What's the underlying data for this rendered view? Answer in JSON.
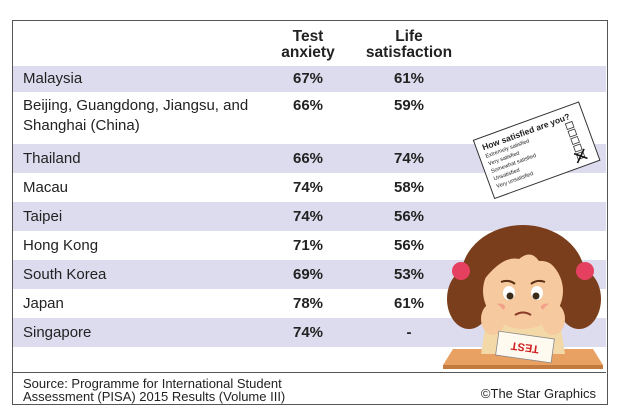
{
  "headers": {
    "col1_line1": "Test",
    "col1_line2": "anxiety",
    "col2_line1": "Life",
    "col2_line2": "satisfaction"
  },
  "rows": [
    {
      "country_line1": "Malaysia",
      "country_line2": "",
      "anxiety": "67%",
      "satisfaction": "61%",
      "shaded": true
    },
    {
      "country_line1": "Beijing, Guangdong, Jiangsu, and",
      "country_line2": "Shanghai (China)",
      "anxiety": "66%",
      "satisfaction": "59%",
      "shaded": false
    },
    {
      "country_line1": "Thailand",
      "country_line2": "",
      "anxiety": "66%",
      "satisfaction": "74%",
      "shaded": true
    },
    {
      "country_line1": "Macau",
      "country_line2": "",
      "anxiety": "74%",
      "satisfaction": "58%",
      "shaded": false
    },
    {
      "country_line1": "Taipei",
      "country_line2": "",
      "anxiety": "74%",
      "satisfaction": "56%",
      "shaded": true
    },
    {
      "country_line1": "Hong Kong",
      "country_line2": "",
      "anxiety": "71%",
      "satisfaction": "56%",
      "shaded": false
    },
    {
      "country_line1": "South Korea",
      "country_line2": "",
      "anxiety": "69%",
      "satisfaction": "53%",
      "shaded": true
    },
    {
      "country_line1": "Japan",
      "country_line2": "",
      "anxiety": "78%",
      "satisfaction": "61%",
      "shaded": false
    },
    {
      "country_line1": "Singapore",
      "country_line2": "",
      "anxiety": "74%",
      "satisfaction": "-",
      "shaded": true
    }
  ],
  "footer": {
    "source_line1": "Source: Programme for International Student",
    "source_line2": "Assessment (PISA) 2015 Results (Volume III)",
    "credit": "©The Star Graphics"
  },
  "survey_card": {
    "title": "How satisfied are you?",
    "options": [
      "Extremely satisfied",
      "Very satisfied",
      "Somewhat satisfied",
      "Unsatisfied",
      "Very unsatisfied"
    ]
  },
  "test_paper_label": "TEST",
  "colors": {
    "row_shade": "#dcdcee",
    "border": "#555555",
    "hair": "#7a3e1c",
    "desk": "#e8a063"
  }
}
